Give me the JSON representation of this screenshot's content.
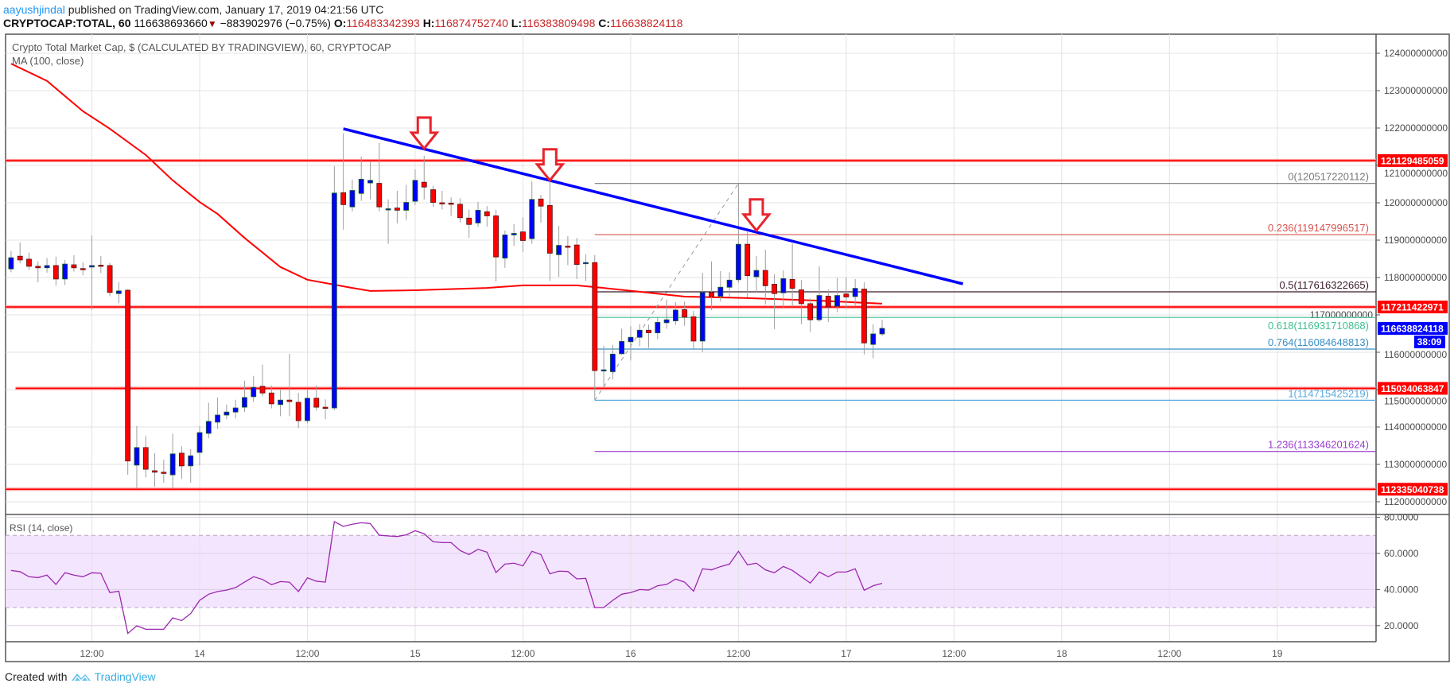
{
  "header": {
    "author": "aayushjindal",
    "published": "published on TradingView.com, January 17, 2019 04:21:56 UTC",
    "symbol": "CRYPTOCAP:TOTAL, 60",
    "last": "116638693660",
    "change": "−883902976 (−0.75%)",
    "o_label": "O:",
    "o": "116483342393",
    "h_label": "H:",
    "h": "116874752740",
    "l_label": "L:",
    "l": "116383809498",
    "c_label": "C:",
    "c": "116638824118",
    "direction": "down"
  },
  "legend": {
    "title": "Crypto Total Market Cap, $ (CALCULATED BY TRADINGVIEW), 60, CRYPTOCAP",
    "ma": "MA (100, close)",
    "rsi": "RSI (14, close)"
  },
  "footer": {
    "created_with": "Created with",
    "brand": "TradingView"
  },
  "chart_data": {
    "type": "candlestick",
    "interval": "60",
    "first_bar": "2019-01-13 03:00",
    "colors": {
      "up": "#0000ff",
      "down": "#ff0000",
      "ma": "#ff0000",
      "trendline": "#0000ff",
      "support": "#ff0000",
      "arrow": "#e8232b",
      "rsi": "#9c27b0",
      "last_price": "#0000ff"
    },
    "ylim": [
      111500000000,
      124500000000
    ],
    "y_ticks": [
      "124000000000",
      "123000000000",
      "122000000000",
      "121000000000",
      "120000000000",
      "119000000000",
      "118000000000",
      "117000000000",
      "116000000000",
      "115000000000",
      "114000000000",
      "113000000000",
      "112000000000"
    ],
    "x_ticks": [
      {
        "t": "2019-01-13 12:00",
        "label": "12:00"
      },
      {
        "t": "2019-01-14 00:00",
        "label": "14"
      },
      {
        "t": "2019-01-14 12:00",
        "label": "12:00"
      },
      {
        "t": "2019-01-15 00:00",
        "label": "15"
      },
      {
        "t": "2019-01-15 12:00",
        "label": "12:00"
      },
      {
        "t": "2019-01-16 00:00",
        "label": "16"
      },
      {
        "t": "2019-01-16 12:00",
        "label": "12:00"
      },
      {
        "t": "2019-01-17 00:00",
        "label": "17"
      },
      {
        "t": "2019-01-17 12:00",
        "label": "12:00"
      },
      {
        "t": "2019-01-18 00:00",
        "label": "18"
      },
      {
        "t": "2019-01-18 12:00",
        "label": "12:00"
      },
      {
        "t": "2019-01-19 00:00",
        "label": "19"
      }
    ],
    "candles_ohlc": [
      [
        118230000000.0,
        118710000000.0,
        118140000000.0,
        118530000000.0
      ],
      [
        118570000000.0,
        118940000000.0,
        118380000000.0,
        118470000000.0
      ],
      [
        118490000000.0,
        118670000000.0,
        118200000000.0,
        118300000000.0
      ],
      [
        118300000000.0,
        118430000000.0,
        117870000000.0,
        118260000000.0
      ],
      [
        118260000000.0,
        118520000000.0,
        118130000000.0,
        118320000000.0
      ],
      [
        118320000000.0,
        118560000000.0,
        117780000000.0,
        117960000000.0
      ],
      [
        117960000000.0,
        118470000000.0,
        117800000000.0,
        118360000000.0
      ],
      [
        118340000000.0,
        118600000000.0,
        118160000000.0,
        118260000000.0
      ],
      [
        118240000000.0,
        118410000000.0,
        118060000000.0,
        118210000000.0
      ],
      [
        118280000000.0,
        119130000000.0,
        117140000000.0,
        118320000000.0
      ],
      [
        118330000000.0,
        118580000000.0,
        118120000000.0,
        118300000000.0
      ],
      [
        118320000000.0,
        118390000000.0,
        117500000000.0,
        117600000000.0
      ],
      [
        117570000000.0,
        117880000000.0,
        117310000000.0,
        117640000000.0
      ],
      [
        117660000000.0,
        117690000000.0,
        112720000000.0,
        113090000000.0
      ],
      [
        112980000000.0,
        114030000000.0,
        112350000000.0,
        113450000000.0
      ],
      [
        113450000000.0,
        113760000000.0,
        112650000000.0,
        112870000000.0
      ],
      [
        112830000000.0,
        113300000000.0,
        112400000000.0,
        112790000000.0
      ],
      [
        112790000000.0,
        113130000000.0,
        112510000000.0,
        112770000000.0
      ],
      [
        112720000000.0,
        113820000000.0,
        112350000000.0,
        113280000000.0
      ],
      [
        113300000000.0,
        113480000000.0,
        112610000000.0,
        112960000000.0
      ],
      [
        112960000000.0,
        113410000000.0,
        112510000000.0,
        113230000000.0
      ],
      [
        113320000000.0,
        114030000000.0,
        112970000000.0,
        113850000000.0
      ],
      [
        113830000000.0,
        114650000000.0,
        113700000000.0,
        114150000000.0
      ],
      [
        114130000000.0,
        114790000000.0,
        113950000000.0,
        114320000000.0
      ],
      [
        114320000000.0,
        114600000000.0,
        114210000000.0,
        114400000000.0
      ],
      [
        114400000000.0,
        114730000000.0,
        114230000000.0,
        114510000000.0
      ],
      [
        114530000000.0,
        115240000000.0,
        114400000000.0,
        114790000000.0
      ],
      [
        114810000000.0,
        115370000000.0,
        114670000000.0,
        115060000000.0
      ],
      [
        115090000000.0,
        115670000000.0,
        114820000000.0,
        114910000000.0
      ],
      [
        114910000000.0,
        115110000000.0,
        114500000000.0,
        114620000000.0
      ],
      [
        114600000000.0,
        115020000000.0,
        114290000000.0,
        114720000000.0
      ],
      [
        114720000000.0,
        115960000000.0,
        114290000000.0,
        114680000000.0
      ],
      [
        114660000000.0,
        114910000000.0,
        113970000000.0,
        114170000000.0
      ],
      [
        114170000000.0,
        114990000000.0,
        114100000000.0,
        114770000000.0
      ],
      [
        114770000000.0,
        115110000000.0,
        114440000000.0,
        114530000000.0
      ],
      [
        114530000000.0,
        114740000000.0,
        114210000000.0,
        114510000000.0
      ],
      [
        114510000000.0,
        120980000000.0,
        114450000000.0,
        120260000000.0
      ],
      [
        120270000000.0,
        121860000000.0,
        119280000000.0,
        119950000000.0
      ],
      [
        119890000000.0,
        120620000000.0,
        119770000000.0,
        120330000000.0
      ],
      [
        120250000000.0,
        121240000000.0,
        120050000000.0,
        120630000000.0
      ],
      [
        120530000000.0,
        121110000000.0,
        120090000000.0,
        120600000000.0
      ],
      [
        120520000000.0,
        121600000000.0,
        119770000000.0,
        119890000000.0
      ],
      [
        119810000000.0,
        120090000000.0,
        118900000000.0,
        119840000000.0
      ],
      [
        119860000000.0,
        120320000000.0,
        119450000000.0,
        119800000000.0
      ],
      [
        119800000000.0,
        120480000000.0,
        119540000000.0,
        120010000000.0
      ],
      [
        120040000000.0,
        120890000000.0,
        119940000000.0,
        120600000000.0
      ],
      [
        120550000000.0,
        121260000000.0,
        120090000000.0,
        120420000000.0
      ],
      [
        120350000000.0,
        120460000000.0,
        119890000000.0,
        120010000000.0
      ],
      [
        120000000000.0,
        120320000000.0,
        119820000000.0,
        119990000000.0
      ],
      [
        119990000000.0,
        120140000000.0,
        119650000000.0,
        119980000000.0
      ],
      [
        119960000000.0,
        120120000000.0,
        119470000000.0,
        119600000000.0
      ],
      [
        119590000000.0,
        119820000000.0,
        119060000000.0,
        119420000000.0
      ],
      [
        119460000000.0,
        120020000000.0,
        119360000000.0,
        119800000000.0
      ],
      [
        119760000000.0,
        119910000000.0,
        119360000000.0,
        119650000000.0
      ],
      [
        119650000000.0,
        119810000000.0,
        117890000000.0,
        118550000000.0
      ],
      [
        118520000000.0,
        119260000000.0,
        118260000000.0,
        119140000000.0
      ],
      [
        119140000000.0,
        119430000000.0,
        118850000000.0,
        119180000000.0
      ],
      [
        119220000000.0,
        119610000000.0,
        118690000000.0,
        118990000000.0
      ],
      [
        119040000000.0,
        120570000000.0,
        118900000000.0,
        120090000000.0
      ],
      [
        120100000000.0,
        120210000000.0,
        119470000000.0,
        119910000000.0
      ],
      [
        119930000000.0,
        120600000000.0,
        117910000000.0,
        118650000000.0
      ],
      [
        118610000000.0,
        119380000000.0,
        118020000000.0,
        118860000000.0
      ],
      [
        118840000000.0,
        119110000000.0,
        118330000000.0,
        118820000000.0
      ],
      [
        118870000000.0,
        119060000000.0,
        117960000000.0,
        118350000000.0
      ],
      [
        118380000000.0,
        118620000000.0,
        117910000000.0,
        118400000000.0
      ],
      [
        118400000000.0,
        118600000000.0,
        114720000000.0,
        115510000000.0
      ],
      [
        115510000000.0,
        116170000000.0,
        115100000000.0,
        115530000000.0
      ],
      [
        115480000000.0,
        116200000000.0,
        115280000000.0,
        115950000000.0
      ],
      [
        115960000000.0,
        116630000000.0,
        115940000000.0,
        116290000000.0
      ],
      [
        116280000000.0,
        116700000000.0,
        115780000000.0,
        116400000000.0
      ],
      [
        116400000000.0,
        116750000000.0,
        116160000000.0,
        116590000000.0
      ],
      [
        116590000000.0,
        116740000000.0,
        116120000000.0,
        116520000000.0
      ],
      [
        116520000000.0,
        116950000000.0,
        116350000000.0,
        116800000000.0
      ],
      [
        116790000000.0,
        117410000000.0,
        116630000000.0,
        116870000000.0
      ],
      [
        116840000000.0,
        117340000000.0,
        116730000000.0,
        117130000000.0
      ],
      [
        117140000000.0,
        117360000000.0,
        116710000000.0,
        116940000000.0
      ],
      [
        116950000000.0,
        117110000000.0,
        116060000000.0,
        116300000000.0
      ],
      [
        116300000000.0,
        118120000000.0,
        116010000000.0,
        117600000000.0
      ],
      [
        117600000000.0,
        118430000000.0,
        117130000000.0,
        117500000000.0
      ],
      [
        117500000000.0,
        118170000000.0,
        117360000000.0,
        117740000000.0
      ],
      [
        117740000000.0,
        118140000000.0,
        117490000000.0,
        117930000000.0
      ],
      [
        117940000000.0,
        120520000000.0,
        117860000000.0,
        118890000000.0
      ],
      [
        118890000000.0,
        119220000000.0,
        117470000000.0,
        118050000000.0
      ],
      [
        118020000000.0,
        118570000000.0,
        117600000000.0,
        118190000000.0
      ],
      [
        118190000000.0,
        118740000000.0,
        117280000000.0,
        117780000000.0
      ],
      [
        117820000000.0,
        118090000000.0,
        116620000000.0,
        117570000000.0
      ],
      [
        117590000000.0,
        118190000000.0,
        117180000000.0,
        117970000000.0
      ],
      [
        117950000000.0,
        118910000000.0,
        117220000000.0,
        117710000000.0
      ],
      [
        117670000000.0,
        117930000000.0,
        116750000000.0,
        117300000000.0
      ],
      [
        117300000000.0,
        117440000000.0,
        116540000000.0,
        116870000000.0
      ],
      [
        116870000000.0,
        118300000000.0,
        116820000000.0,
        117520000000.0
      ],
      [
        117500000000.0,
        117680000000.0,
        116810000000.0,
        117210000000.0
      ],
      [
        117230000000.0,
        117990000000.0,
        117070000000.0,
        117520000000.0
      ],
      [
        117560000000.0,
        118000000000.0,
        117200000000.0,
        117480000000.0
      ],
      [
        117490000000.0,
        117960000000.0,
        117250000000.0,
        117710000000.0
      ],
      [
        117690000000.0,
        117870000000.0,
        115940000000.0,
        116250000000.0
      ],
      [
        116210000000.0,
        116750000000.0,
        115840000000.0,
        116490000000.0
      ],
      [
        116490000000.0,
        116870000000.0,
        116430000000.0,
        116638824118.0
      ]
    ],
    "ma100": [
      [
        "2019-01-13 03:00",
        123720000000.0
      ],
      [
        "2019-01-13 07:00",
        123260000000.0
      ],
      [
        "2019-01-13 11:00",
        122450000000.0
      ],
      [
        "2019-01-13 14:00",
        121980000000.0
      ],
      [
        "2019-01-13 18:00",
        121280000000.0
      ],
      [
        "2019-01-13 21:00",
        120600000000.0
      ],
      [
        "2019-01-14 00:00",
        120020000000.0
      ],
      [
        "2019-01-14 02:00",
        119700000000.0
      ],
      [
        "2019-01-14 05:00",
        119060000000.0
      ],
      [
        "2019-01-14 09:00",
        118280000000.0
      ],
      [
        "2019-01-14 12:00",
        117940000000.0
      ],
      [
        "2019-01-14 17:00",
        117720000000.0
      ],
      [
        "2019-01-14 19:00",
        117640000000.0
      ],
      [
        "2019-01-15 00:00",
        117660000000.0
      ],
      [
        "2019-01-15 08:00",
        117720000000.0
      ],
      [
        "2019-01-15 12:00",
        117790000000.0
      ],
      [
        "2019-01-15 18:00",
        117790000000.0
      ],
      [
        "2019-01-15 21:00",
        117720000000.0
      ],
      [
        "2019-01-16 01:00",
        117620000000.0
      ],
      [
        "2019-01-16 06:00",
        117490000000.0
      ],
      [
        "2019-01-16 13:00",
        117450000000.0
      ],
      [
        "2019-01-16 21:00",
        117380000000.0
      ],
      [
        "2019-01-17 04:00",
        117300000000.0
      ]
    ],
    "rsi": {
      "ylim": [
        10,
        82
      ],
      "ticks": [
        "80.0000",
        "60.0000",
        "40.0000",
        "20.0000"
      ],
      "bands": [
        30,
        70
      ],
      "values": [
        50.6,
        49.9,
        47.1,
        46.6,
        48.0,
        42.8,
        49.3,
        48.0,
        47.1,
        49.3,
        49.0,
        38.3,
        39.1,
        15.7,
        19.9,
        18.0,
        18.0,
        18.0,
        24.3,
        22.8,
        26.7,
        34.0,
        37.4,
        38.9,
        39.7,
        41.1,
        44.1,
        47.1,
        45.6,
        42.7,
        44.4,
        44.1,
        38.9,
        46.5,
        44.6,
        44.1,
        77.6,
        75.0,
        76.2,
        77.0,
        76.6,
        70.1,
        69.7,
        69.4,
        70.3,
        72.6,
        70.9,
        66.5,
        66.0,
        66.0,
        61.6,
        59.4,
        62.3,
        60.7,
        49.4,
        54.1,
        54.6,
        53.1,
        61.2,
        59.4,
        48.7,
        50.2,
        50.0,
        45.9,
        46.2,
        30.0,
        30.0,
        34.0,
        37.4,
        38.3,
        40.0,
        39.7,
        42.1,
        42.8,
        45.8,
        44.1,
        39.1,
        51.5,
        50.9,
        52.7,
        54.1,
        61.2,
        53.7,
        54.6,
        50.9,
        49.3,
        52.8,
        50.6,
        47.1,
        43.6,
        49.7,
        47.1,
        49.7,
        49.7,
        51.5,
        39.6,
        42.1,
        43.4
      ]
    },
    "support_lines": [
      {
        "value": 121129485059,
        "label": "121129485059",
        "from": "2019-01-13 02:00"
      },
      {
        "value": 117211422971,
        "label": "117211422971",
        "from": "2019-01-13 02:00"
      },
      {
        "value": 115034063847,
        "label": "115034063847",
        "from": "2019-01-13 03:30"
      },
      {
        "value": 112335040738,
        "label": "112335040738",
        "from": "2019-01-13 02:00"
      }
    ],
    "last_price": {
      "value": 116638824118,
      "label": "116638824118",
      "countdown": "38:09"
    },
    "trendline": [
      [
        "2019-01-14 16:00",
        121980000000.0
      ],
      [
        "2019-01-17 13:00",
        117830000000.0
      ]
    ],
    "arrows": [
      [
        "2019-01-15 01:00",
        121450000000.0
      ],
      [
        "2019-01-15 15:00",
        120600000000.0
      ],
      [
        "2019-01-16 14:00",
        119260000000.0
      ]
    ],
    "fib": {
      "from": [
        "2019-01-15 20:00",
        114715425219
      ],
      "to": [
        "2019-01-16 12:00",
        120517220112
      ],
      "levels": [
        {
          "label": "0(120517220112)",
          "value": 120517220112,
          "color": "#787878"
        },
        {
          "label": "0.236(119147996517)",
          "value": 119147996517,
          "color": "#d9534f"
        },
        {
          "label": "0.5(117616322665)",
          "value": 117616322665,
          "color": "#3b1a2a"
        },
        {
          "label": "0.618(116931710868)",
          "value": 116931710868,
          "color": "#3ec08f"
        },
        {
          "label": "0.764(116084648813)",
          "value": 116084648813,
          "color": "#3a8fc4"
        },
        {
          "label": "1(114715425219)",
          "value": 114715425219,
          "color": "#5aaee0"
        },
        {
          "label": "1.236(113346201624)",
          "value": 113346201624,
          "color": "#9b3fcf"
        }
      ]
    }
  }
}
